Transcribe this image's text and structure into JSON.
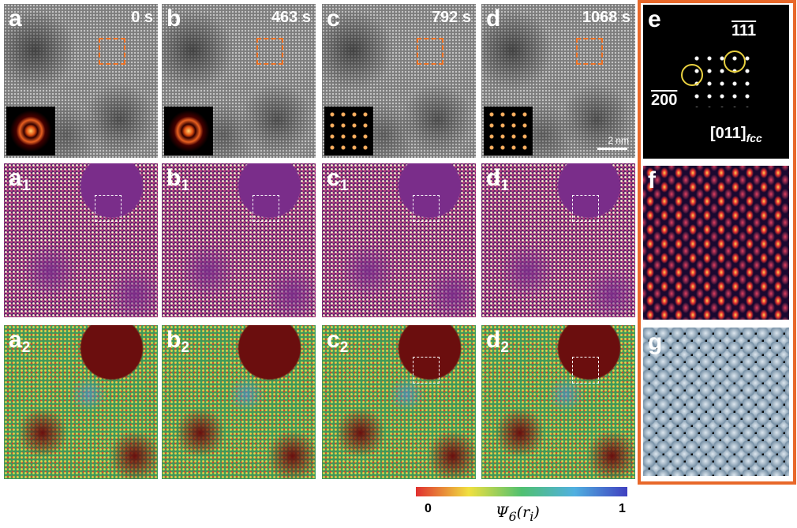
{
  "row_top": [
    {
      "label": "a",
      "time": "0 s"
    },
    {
      "label": "b",
      "time": "463 s"
    },
    {
      "label": "c",
      "time": "792 s"
    },
    {
      "label": "d",
      "time": "1068 s"
    }
  ],
  "row_mid": [
    {
      "label": "a",
      "sub": "1"
    },
    {
      "label": "b",
      "sub": "1"
    },
    {
      "label": "c",
      "sub": "1"
    },
    {
      "label": "d",
      "sub": "1"
    }
  ],
  "row_bot": [
    {
      "label": "a",
      "sub": "2"
    },
    {
      "label": "b",
      "sub": "2"
    },
    {
      "label": "c",
      "sub": "2"
    },
    {
      "label": "d",
      "sub": "2"
    }
  ],
  "scale_bar": "2 nm",
  "panel_e": {
    "label": "e",
    "spot1": "111",
    "spot2": "200",
    "zone": "[011]",
    "zone_sub": "fcc"
  },
  "panel_f": {
    "label": "f"
  },
  "panel_g": {
    "label": "g"
  },
  "colorbar": {
    "min": "0",
    "max": "1",
    "symbol": "Ψ",
    "symbol_sub": "6",
    "arg": "(r",
    "arg_sub": "i",
    "close": ")"
  }
}
